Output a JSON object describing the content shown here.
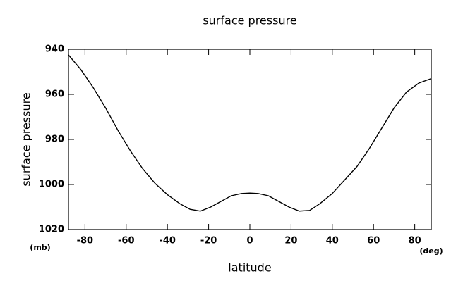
{
  "chart_data": {
    "type": "line",
    "title": "surface pressure",
    "x_label": "latitude",
    "y_label": "surface pressure",
    "x_unit": "(deg)",
    "y_unit": "(mb)",
    "x": [
      -88,
      -82,
      -76,
      -70,
      -64,
      -58,
      -52,
      -46,
      -40,
      -34,
      -29,
      -24,
      -19,
      -14,
      -9,
      -4,
      0,
      4,
      9,
      14,
      19,
      24,
      29,
      34,
      40,
      46,
      52,
      58,
      64,
      70,
      76,
      82,
      88
    ],
    "series": [
      {
        "name": "surface pressure",
        "color": "#000000",
        "values": [
          942.5,
          949,
          957,
          966,
          976,
          985,
          993,
          999.5,
          1004.5,
          1008.5,
          1011,
          1011.8,
          1010,
          1007.5,
          1005,
          1004,
          1003.8,
          1004,
          1005,
          1007.5,
          1010,
          1011.8,
          1011.5,
          1008.5,
          1004,
          998,
          992,
          984,
          975,
          966,
          959,
          955,
          953
        ]
      }
    ],
    "xlim": [
      -88,
      88
    ],
    "xticks": [
      -80,
      -60,
      -40,
      -20,
      0,
      20,
      40,
      60,
      80
    ],
    "ylim": [
      1020,
      940
    ],
    "yticks": [
      940,
      960,
      980,
      1000,
      1020
    ]
  }
}
